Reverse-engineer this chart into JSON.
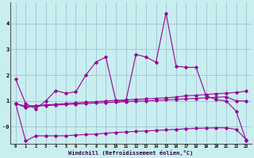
{
  "x": [
    0,
    1,
    2,
    3,
    4,
    5,
    6,
    7,
    8,
    9,
    10,
    11,
    12,
    13,
    14,
    15,
    16,
    17,
    18,
    19,
    20,
    21,
    22,
    23
  ],
  "line1": [
    1.85,
    0.9,
    0.7,
    1.0,
    1.4,
    1.3,
    1.35,
    2.0,
    2.5,
    2.7,
    1.0,
    1.0,
    2.8,
    2.7,
    2.5,
    4.4,
    2.35,
    2.3,
    2.3,
    1.2,
    1.05,
    1.0,
    0.6,
    -0.55
  ],
  "line2": [
    0.9,
    0.8,
    0.82,
    0.85,
    0.87,
    0.9,
    0.92,
    0.95,
    0.97,
    1.0,
    1.02,
    1.04,
    1.06,
    1.08,
    1.1,
    1.12,
    1.15,
    1.2,
    1.22,
    1.25,
    1.28,
    1.3,
    1.33,
    1.38
  ],
  "line3": [
    0.9,
    0.75,
    0.8,
    0.82,
    0.84,
    0.86,
    0.88,
    0.9,
    0.92,
    0.94,
    0.95,
    0.97,
    0.99,
    1.0,
    1.02,
    1.04,
    1.06,
    1.08,
    1.1,
    1.12,
    1.14,
    1.16,
    1.0,
    1.0
  ],
  "line4": [
    0.9,
    -0.55,
    -0.35,
    -0.35,
    -0.35,
    -0.35,
    -0.32,
    -0.3,
    -0.28,
    -0.25,
    -0.22,
    -0.2,
    -0.18,
    -0.16,
    -0.14,
    -0.12,
    -0.1,
    -0.08,
    -0.06,
    -0.05,
    -0.04,
    -0.04,
    -0.1,
    -0.5
  ],
  "line_color": "#990099",
  "bg_color": "#c8eef0",
  "grid_color": "#99bbcc",
  "xlabel": "Windchill (Refroidissement éolien,°C)",
  "xlim": [
    -0.5,
    23.5
  ],
  "ylim": [
    -0.65,
    4.8
  ],
  "yticks": [
    0,
    1,
    2,
    3,
    4
  ],
  "ytick_labels": [
    "-0",
    "1",
    "2",
    "3",
    "4"
  ],
  "xticks": [
    0,
    1,
    2,
    3,
    4,
    5,
    6,
    7,
    8,
    9,
    10,
    11,
    12,
    13,
    14,
    15,
    16,
    17,
    18,
    19,
    20,
    21,
    22,
    23
  ]
}
